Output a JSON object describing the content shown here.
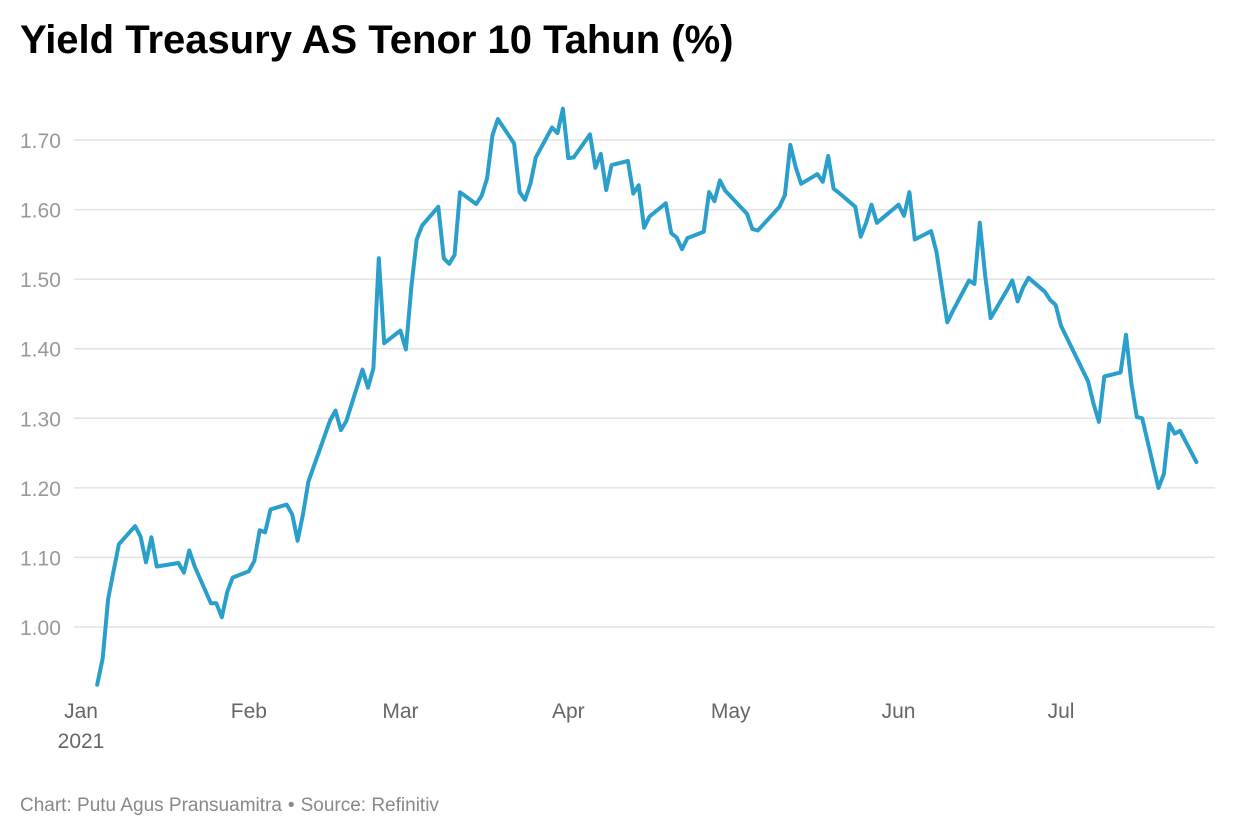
{
  "header": {
    "title": "Yield Treasury AS Tenor 10 Tahun (%)"
  },
  "footer": {
    "chart_credit": "Chart: Putu Agus Pransuamitra",
    "separator": "•",
    "source": "Source: Refinitiv"
  },
  "colors": {
    "line": "#2a9fcb",
    "grid": "#e3e3e3",
    "tick_text": "#999999",
    "axis_text": "#666666"
  },
  "chart_data": {
    "type": "line",
    "title": "Yield Treasury AS Tenor 10 Tahun (%)",
    "xlabel": "",
    "ylabel": "",
    "ylim": [
      0.915,
      1.795
    ],
    "grid": true,
    "y_ticks": [
      {
        "value": 1.0,
        "label": "1.00"
      },
      {
        "value": 1.1,
        "label": "1.10"
      },
      {
        "value": 1.2,
        "label": "1.20"
      },
      {
        "value": 1.3,
        "label": "1.30"
      },
      {
        "value": 1.4,
        "label": "1.40"
      },
      {
        "value": 1.5,
        "label": "1.50"
      },
      {
        "value": 1.6,
        "label": "1.60"
      },
      {
        "value": 1.7,
        "label": "1.70"
      }
    ],
    "x_ticks": [
      {
        "date": "2021-01-01",
        "label": "Jan",
        "sublabel": "2021"
      },
      {
        "date": "2021-02-01",
        "label": "Feb"
      },
      {
        "date": "2021-03-01",
        "label": "Mar"
      },
      {
        "date": "2021-04-01",
        "label": "Apr"
      },
      {
        "date": "2021-05-01",
        "label": "May"
      },
      {
        "date": "2021-06-01",
        "label": "Jun"
      },
      {
        "date": "2021-07-01",
        "label": "Jul"
      }
    ],
    "xlim": [
      "2021-01-01",
      "2021-07-30"
    ],
    "series": [
      {
        "name": "",
        "points": [
          [
            "2021-01-04",
            0.917
          ],
          [
            "2021-01-05",
            0.955
          ],
          [
            "2021-01-06",
            1.04
          ],
          [
            "2021-01-07",
            1.08
          ],
          [
            "2021-01-08",
            1.119
          ],
          [
            "2021-01-11",
            1.145
          ],
          [
            "2021-01-12",
            1.13
          ],
          [
            "2021-01-13",
            1.093
          ],
          [
            "2021-01-14",
            1.129
          ],
          [
            "2021-01-15",
            1.087
          ],
          [
            "2021-01-19",
            1.092
          ],
          [
            "2021-01-20",
            1.078
          ],
          [
            "2021-01-21",
            1.11
          ],
          [
            "2021-01-22",
            1.087
          ],
          [
            "2021-01-25",
            1.034
          ],
          [
            "2021-01-26",
            1.034
          ],
          [
            "2021-01-27",
            1.014
          ],
          [
            "2021-01-28",
            1.05
          ],
          [
            "2021-01-29",
            1.071
          ],
          [
            "2021-02-01",
            1.08
          ],
          [
            "2021-02-02",
            1.095
          ],
          [
            "2021-02-03",
            1.139
          ],
          [
            "2021-02-04",
            1.136
          ],
          [
            "2021-02-05",
            1.169
          ],
          [
            "2021-02-08",
            1.176
          ],
          [
            "2021-02-09",
            1.162
          ],
          [
            "2021-02-10",
            1.124
          ],
          [
            "2021-02-11",
            1.162
          ],
          [
            "2021-02-12",
            1.209
          ],
          [
            "2021-02-16",
            1.297
          ],
          [
            "2021-02-17",
            1.311
          ],
          [
            "2021-02-18",
            1.283
          ],
          [
            "2021-02-19",
            1.296
          ],
          [
            "2021-02-22",
            1.37
          ],
          [
            "2021-02-23",
            1.344
          ],
          [
            "2021-02-24",
            1.372
          ],
          [
            "2021-02-25",
            1.53
          ],
          [
            "2021-02-26",
            1.408
          ],
          [
            "2021-03-01",
            1.426
          ],
          [
            "2021-03-02",
            1.399
          ],
          [
            "2021-03-03",
            1.488
          ],
          [
            "2021-03-04",
            1.557
          ],
          [
            "2021-03-05",
            1.577
          ],
          [
            "2021-03-08",
            1.604
          ],
          [
            "2021-03-09",
            1.53
          ],
          [
            "2021-03-10",
            1.522
          ],
          [
            "2021-03-11",
            1.535
          ],
          [
            "2021-03-12",
            1.625
          ],
          [
            "2021-03-15",
            1.608
          ],
          [
            "2021-03-16",
            1.62
          ],
          [
            "2021-03-17",
            1.645
          ],
          [
            "2021-03-18",
            1.707
          ],
          [
            "2021-03-19",
            1.73
          ],
          [
            "2021-03-22",
            1.695
          ],
          [
            "2021-03-23",
            1.625
          ],
          [
            "2021-03-24",
            1.614
          ],
          [
            "2021-03-25",
            1.637
          ],
          [
            "2021-03-26",
            1.675
          ],
          [
            "2021-03-29",
            1.718
          ],
          [
            "2021-03-30",
            1.71
          ],
          [
            "2021-03-31",
            1.745
          ],
          [
            "2021-04-01",
            1.674
          ],
          [
            "2021-04-02",
            1.675
          ],
          [
            "2021-04-05",
            1.708
          ],
          [
            "2021-04-06",
            1.66
          ],
          [
            "2021-04-07",
            1.68
          ],
          [
            "2021-04-08",
            1.628
          ],
          [
            "2021-04-09",
            1.664
          ],
          [
            "2021-04-12",
            1.67
          ],
          [
            "2021-04-13",
            1.623
          ],
          [
            "2021-04-14",
            1.635
          ],
          [
            "2021-04-15",
            1.574
          ],
          [
            "2021-04-16",
            1.59
          ],
          [
            "2021-04-19",
            1.609
          ],
          [
            "2021-04-20",
            1.566
          ],
          [
            "2021-04-21",
            1.56
          ],
          [
            "2021-04-22",
            1.543
          ],
          [
            "2021-04-23",
            1.559
          ],
          [
            "2021-04-26",
            1.568
          ],
          [
            "2021-04-27",
            1.625
          ],
          [
            "2021-04-28",
            1.612
          ],
          [
            "2021-04-29",
            1.642
          ],
          [
            "2021-04-30",
            1.627
          ],
          [
            "2021-05-04",
            1.594
          ],
          [
            "2021-05-05",
            1.572
          ],
          [
            "2021-05-06",
            1.57
          ],
          [
            "2021-05-10",
            1.604
          ],
          [
            "2021-05-11",
            1.621
          ],
          [
            "2021-05-12",
            1.693
          ],
          [
            "2021-05-13",
            1.661
          ],
          [
            "2021-05-14",
            1.637
          ],
          [
            "2021-05-17",
            1.651
          ],
          [
            "2021-05-18",
            1.64
          ],
          [
            "2021-05-19",
            1.677
          ],
          [
            "2021-05-20",
            1.63
          ],
          [
            "2021-05-21",
            1.624
          ],
          [
            "2021-05-24",
            1.604
          ],
          [
            "2021-05-25",
            1.561
          ],
          [
            "2021-05-26",
            1.581
          ],
          [
            "2021-05-27",
            1.607
          ],
          [
            "2021-05-28",
            1.581
          ],
          [
            "2021-06-01",
            1.607
          ],
          [
            "2021-06-02",
            1.591
          ],
          [
            "2021-06-03",
            1.625
          ],
          [
            "2021-06-04",
            1.557
          ],
          [
            "2021-06-07",
            1.569
          ],
          [
            "2021-06-08",
            1.539
          ],
          [
            "2021-06-09",
            1.488
          ],
          [
            "2021-06-10",
            1.438
          ],
          [
            "2021-06-11",
            1.454
          ],
          [
            "2021-06-14",
            1.498
          ],
          [
            "2021-06-15",
            1.493
          ],
          [
            "2021-06-16",
            1.581
          ],
          [
            "2021-06-17",
            1.505
          ],
          [
            "2021-06-18",
            1.444
          ],
          [
            "2021-06-21",
            1.484
          ],
          [
            "2021-06-22",
            1.498
          ],
          [
            "2021-06-23",
            1.468
          ],
          [
            "2021-06-24",
            1.488
          ],
          [
            "2021-06-25",
            1.502
          ],
          [
            "2021-06-28",
            1.482
          ],
          [
            "2021-06-29",
            1.47
          ],
          [
            "2021-06-30",
            1.463
          ],
          [
            "2021-07-01",
            1.433
          ],
          [
            "2021-07-06",
            1.353
          ],
          [
            "2021-07-07",
            1.321
          ],
          [
            "2021-07-08",
            1.295
          ],
          [
            "2021-07-09",
            1.36
          ],
          [
            "2021-07-12",
            1.366
          ],
          [
            "2021-07-13",
            1.42
          ],
          [
            "2021-07-14",
            1.35
          ],
          [
            "2021-07-15",
            1.302
          ],
          [
            "2021-07-16",
            1.3
          ],
          [
            "2021-07-19",
            1.2
          ],
          [
            "2021-07-20",
            1.22
          ],
          [
            "2021-07-21",
            1.292
          ],
          [
            "2021-07-22",
            1.278
          ],
          [
            "2021-07-23",
            1.282
          ],
          [
            "2021-07-26",
            1.237
          ]
        ]
      }
    ]
  }
}
